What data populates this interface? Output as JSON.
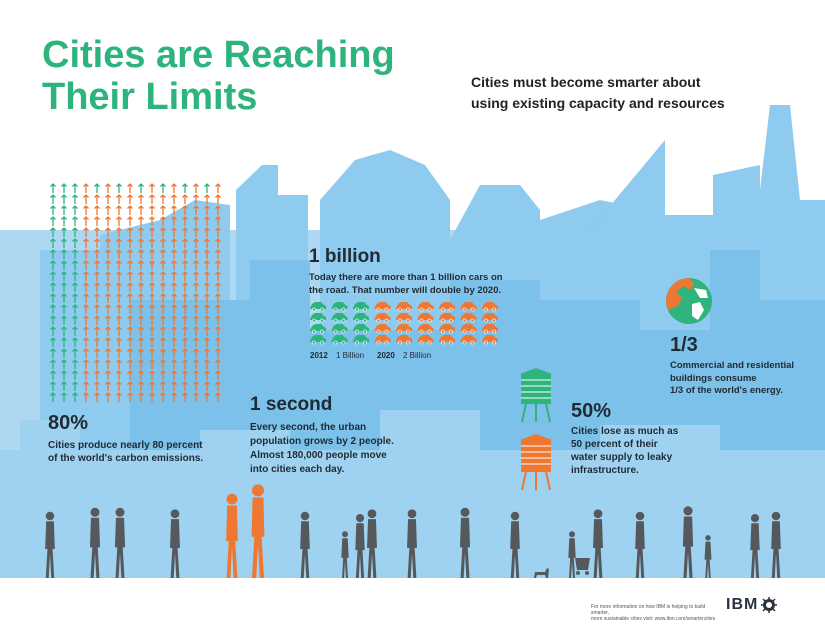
{
  "title_line1": "Cities are Reaching",
  "title_line2": "Their Limits",
  "subtitle_line1": "Cities must become smarter about",
  "subtitle_line2": "using existing capacity and resources",
  "colors": {
    "accent_green": "#2db37c",
    "accent_orange": "#ee7731",
    "sky_blue": "#7cc1ea",
    "text_dark": "#1f2a33",
    "people_gray": "#56595c"
  },
  "carbon": {
    "value": "80%",
    "line1": "Cities produce nearly 80 percent",
    "line2": "of the world's carbon emissions.",
    "icon": "arrow-up-icon"
  },
  "cars": {
    "value": "1 billion",
    "line1": "Today there are more than 1 billion cars on",
    "line2": "the road. That number will double by 2020.",
    "year1": "2012",
    "label1": "1 Billion",
    "year2": "2020",
    "label2": "2 Billion",
    "icon": "car-icon"
  },
  "population": {
    "value": "1 second",
    "line1": "Every second, the urban",
    "line2": "population grows by 2 people.",
    "line3": "Almost 180,000 people move",
    "line4": "into cities each day."
  },
  "energy": {
    "value": "1/3",
    "line1": "Commercial and residential",
    "line2": "buildings consume",
    "line3": "1/3 of the world's energy.",
    "icon": "globe-icon"
  },
  "water": {
    "value": "50%",
    "line1": "Cities lose as much as",
    "line2": "50 percent of their",
    "line3": "water supply to leaky",
    "line4": "infrastructure.",
    "icon": "water-tower-icon"
  },
  "footer": {
    "line1": "For more information on how IBM is helping to build smarter,",
    "line2": "more sustainable cities visit: www.ibm.com/smartercities",
    "logo": "IBM"
  }
}
